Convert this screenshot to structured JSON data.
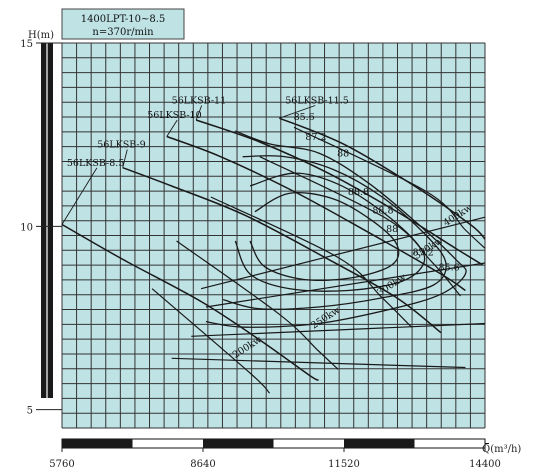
{
  "chart_data": {
    "type": "line",
    "title": "1400LPT-10~8.5",
    "subtitle": "n=370r/min",
    "xlabel": "Q(m³/h)",
    "ylabel": "H(m)",
    "xlim": [
      5760,
      14400
    ],
    "ylim": [
      4.5,
      15
    ],
    "x_ticks": [
      5760,
      8640,
      11520,
      14400
    ],
    "y_ticks": [
      5,
      10,
      15
    ],
    "grid": true,
    "colors": {
      "background": "#bfe2e5",
      "grid": "#333333",
      "curve": "#1a1a1a",
      "frame_bar": "#1a1a1a"
    },
    "head_curves": [
      {
        "name": "56LKSB-8.5",
        "label_at": [
          5860,
          11.65
        ],
        "points": [
          [
            5760,
            10.05
          ],
          [
            7000,
            9.1
          ],
          [
            8600,
            7.95
          ],
          [
            9800,
            6.9
          ],
          [
            10800,
            5.95
          ],
          [
            11000,
            5.8
          ]
        ]
      },
      {
        "name": "56LKSB-9",
        "label_at": [
          6480,
          12.15
        ],
        "points": [
          [
            7000,
            11.6
          ],
          [
            8000,
            11.1
          ],
          [
            9500,
            10.3
          ],
          [
            11200,
            9.1
          ],
          [
            12600,
            8.05
          ],
          [
            13500,
            7.1
          ]
        ]
      },
      {
        "name": "56LKSB-10",
        "label_at": [
          7500,
          12.95
        ],
        "points": [
          [
            7900,
            12.45
          ],
          [
            9000,
            11.9
          ],
          [
            10500,
            10.95
          ],
          [
            12000,
            9.85
          ],
          [
            13500,
            8.7
          ],
          [
            14000,
            8.25
          ]
        ]
      },
      {
        "name": "56LKSB-11",
        "label_at": [
          8000,
          13.35
        ],
        "points": [
          [
            8500,
            12.9
          ],
          [
            9800,
            12.3
          ],
          [
            11200,
            11.45
          ],
          [
            12600,
            10.4
          ],
          [
            13800,
            9.4
          ],
          [
            14350,
            8.95
          ]
        ]
      },
      {
        "name": "56LKSB-11.5",
        "label_at": [
          10320,
          13.35
        ],
        "points": [
          [
            10200,
            12.95
          ],
          [
            11500,
            12.25
          ],
          [
            12900,
            11.15
          ],
          [
            14100,
            10.05
          ],
          [
            14400,
            9.65
          ]
        ]
      }
    ],
    "efficiency_labels": [
      {
        "name": "85.6",
        "label_at": [
          10490,
          12.9
        ]
      },
      {
        "name": "87.2",
        "label_at": [
          10730,
          12.35
        ]
      },
      {
        "name": "88",
        "label_at": [
          11380,
          11.9
        ]
      },
      {
        "name": "88.8",
        "label_at": [
          11600,
          10.85
        ]
      },
      {
        "name": "88.8",
        "label_at": [
          12100,
          10.35
        ]
      },
      {
        "name": "88",
        "label_at": [
          12380,
          9.85
        ]
      },
      {
        "name": "87.2",
        "label_at": [
          12920,
          9.2
        ]
      },
      {
        "name": "85.6",
        "label_at": [
          13450,
          8.8
        ]
      }
    ],
    "efficiency_curves": [
      {
        "name": "85.6",
        "points": [
          [
            9300,
            12.6
          ],
          [
            10000,
            12.25
          ],
          [
            11000,
            12.0
          ],
          [
            12000,
            11.2
          ],
          [
            13000,
            10.1
          ],
          [
            13800,
            9.1
          ],
          [
            14000,
            8.7
          ],
          [
            13500,
            8.15
          ],
          [
            12500,
            7.75
          ],
          [
            11000,
            7.35
          ],
          [
            9500,
            7.25
          ],
          [
            8700,
            7.4
          ]
        ]
      },
      {
        "name": "87.2",
        "points": [
          [
            9450,
            11.9
          ],
          [
            10300,
            11.9
          ],
          [
            11300,
            11.55
          ],
          [
            12300,
            10.8
          ],
          [
            13200,
            9.75
          ],
          [
            13600,
            9.0
          ],
          [
            13350,
            8.4
          ],
          [
            12300,
            8.05
          ],
          [
            11000,
            7.8
          ],
          [
            9800,
            7.75
          ],
          [
            9050,
            8.0
          ]
        ]
      },
      {
        "name": "88",
        "points": [
          [
            9600,
            11.1
          ],
          [
            10500,
            11.45
          ],
          [
            11400,
            11.15
          ],
          [
            12300,
            10.4
          ],
          [
            13000,
            9.55
          ],
          [
            13150,
            9.0
          ],
          [
            12700,
            8.5
          ],
          [
            11600,
            8.25
          ],
          [
            10400,
            8.3
          ],
          [
            9600,
            8.7
          ],
          [
            9300,
            9.6
          ]
        ]
      },
      {
        "name": "88.8",
        "points": [
          [
            9700,
            10.4
          ],
          [
            10400,
            10.9
          ],
          [
            11300,
            10.75
          ],
          [
            12100,
            10.15
          ],
          [
            12600,
            9.5
          ],
          [
            12500,
            8.95
          ],
          [
            11700,
            8.6
          ],
          [
            10700,
            8.55
          ],
          [
            9900,
            8.9
          ],
          [
            9600,
            9.6
          ]
        ]
      }
    ],
    "power_lines": [
      {
        "name": "200kw",
        "label_at": [
          9300,
          6.4
        ],
        "points": [
          [
            7600,
            8.3
          ],
          [
            9600,
            6.0
          ],
          [
            10000,
            5.45
          ]
        ]
      },
      {
        "name": "250kw",
        "label_at": [
          10900,
          7.2
        ],
        "points": [
          [
            8100,
            9.6
          ],
          [
            10200,
            7.6
          ],
          [
            11000,
            6.6
          ],
          [
            11400,
            6.1
          ]
        ]
      },
      {
        "name": "300kw",
        "label_at": [
          12250,
          8.1
        ],
        "points": [
          [
            8800,
            10.8
          ],
          [
            11400,
            9.15
          ],
          [
            12300,
            8.05
          ],
          [
            12900,
            7.25
          ]
        ]
      },
      {
        "name": "350kw",
        "label_at": [
          13000,
          9.1
        ],
        "points": [
          [
            9800,
            11.9
          ],
          [
            12400,
            10.2
          ],
          [
            13300,
            9.05
          ],
          [
            13900,
            8.1
          ]
        ]
      },
      {
        "name": "400kw",
        "label_at": [
          13600,
          10.0
        ],
        "points": [
          [
            10500,
            12.7
          ],
          [
            13200,
            10.95
          ],
          [
            14000,
            9.9
          ],
          [
            14400,
            9.4
          ]
        ]
      }
    ],
    "system_lines": [
      {
        "points": [
          [
            8700,
            7.8
          ],
          [
            14400,
            9.0
          ]
        ]
      },
      {
        "points": [
          [
            8600,
            8.3
          ],
          [
            14400,
            10.25
          ]
        ]
      },
      {
        "points": [
          [
            8400,
            7.0
          ],
          [
            14400,
            7.35
          ]
        ]
      },
      {
        "points": [
          [
            8000,
            6.4
          ],
          [
            14000,
            6.15
          ]
        ]
      }
    ]
  }
}
